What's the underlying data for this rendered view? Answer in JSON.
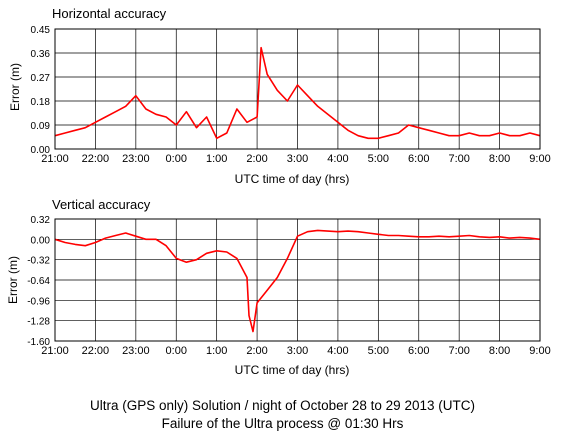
{
  "caption": {
    "line1": "Ultra (GPS only) Solution / night of October 28 to 29  2013 (UTC)",
    "line2": "Failure of the Ultra process @ 01:30 Hrs"
  },
  "colors": {
    "series": "#ff0000",
    "grid": "#000000",
    "background": "#ffffff"
  },
  "chart_data": [
    {
      "type": "line",
      "title": "Horizontal accuracy",
      "xlabel": "UTC time of day (hrs)",
      "ylabel": "Error (m)",
      "xlim": [
        0,
        12
      ],
      "ylim": [
        0,
        0.45
      ],
      "x_tick_labels": [
        "21:00",
        "22:00",
        "23:00",
        "0:00",
        "1:00",
        "2:00",
        "3:00",
        "4:00",
        "5:00",
        "6:00",
        "7:00",
        "8:00",
        "9:00"
      ],
      "y_ticks": [
        0,
        0.09,
        0.18,
        0.27,
        0.36,
        0.45
      ],
      "y_tick_labels": [
        "0.00",
        "0.09",
        "0.18",
        "0.27",
        "0.36",
        "0.45"
      ],
      "grid": true,
      "series": [
        {
          "x": [
            0,
            0.25,
            0.5,
            0.75,
            1,
            1.25,
            1.5,
            1.75,
            2,
            2.25,
            2.5,
            2.75,
            3,
            3.25,
            3.5,
            3.75,
            4,
            4.25,
            4.5,
            4.75,
            5,
            5.1,
            5.25,
            5.5,
            5.75,
            6,
            6.25,
            6.5,
            6.75,
            7,
            7.25,
            7.5,
            7.75,
            8,
            8.25,
            8.5,
            8.75,
            9,
            9.25,
            9.5,
            9.75,
            10,
            10.25,
            10.5,
            10.75,
            11,
            11.25,
            11.5,
            11.75,
            12
          ],
          "y": [
            0.05,
            0.06,
            0.07,
            0.08,
            0.1,
            0.12,
            0.14,
            0.16,
            0.2,
            0.15,
            0.13,
            0.12,
            0.09,
            0.14,
            0.08,
            0.12,
            0.04,
            0.06,
            0.15,
            0.1,
            0.12,
            0.38,
            0.28,
            0.22,
            0.18,
            0.24,
            0.2,
            0.16,
            0.13,
            0.1,
            0.07,
            0.05,
            0.04,
            0.04,
            0.05,
            0.06,
            0.09,
            0.08,
            0.07,
            0.06,
            0.05,
            0.05,
            0.06,
            0.05,
            0.05,
            0.06,
            0.05,
            0.05,
            0.06,
            0.05
          ]
        }
      ]
    },
    {
      "type": "line",
      "title": "Vertical accuracy",
      "xlabel": "UTC time of day (hrs)",
      "ylabel": "Error (m)",
      "xlim": [
        0,
        12
      ],
      "ylim": [
        -1.6,
        0.32
      ],
      "x_tick_labels": [
        "21:00",
        "22:00",
        "23:00",
        "0:00",
        "1:00",
        "2:00",
        "3:00",
        "4:00",
        "5:00",
        "6:00",
        "7:00",
        "8:00",
        "9:00"
      ],
      "y_ticks": [
        -1.6,
        -1.28,
        -0.96,
        -0.64,
        -0.32,
        0,
        0.32
      ],
      "y_tick_labels": [
        "-1.60",
        "-1.28",
        "-0.96",
        "-0.64",
        "-0.32",
        "0.00",
        "0.32"
      ],
      "grid": true,
      "series": [
        {
          "x": [
            0,
            0.25,
            0.5,
            0.75,
            1,
            1.25,
            1.5,
            1.75,
            2,
            2.25,
            2.5,
            2.75,
            3,
            3.25,
            3.5,
            3.75,
            4,
            4.25,
            4.5,
            4.75,
            4.8,
            4.9,
            5,
            5.25,
            5.5,
            5.75,
            6,
            6.25,
            6.5,
            6.75,
            7,
            7.25,
            7.5,
            7.75,
            8,
            8.25,
            8.5,
            8.75,
            9,
            9.25,
            9.5,
            9.75,
            10,
            10.25,
            10.5,
            10.75,
            11,
            11.25,
            11.5,
            11.75,
            12
          ],
          "y": [
            0.0,
            -0.05,
            -0.08,
            -0.1,
            -0.05,
            0.02,
            0.06,
            0.1,
            0.05,
            0.0,
            0.0,
            -0.1,
            -0.3,
            -0.36,
            -0.32,
            -0.22,
            -0.18,
            -0.2,
            -0.3,
            -0.6,
            -1.2,
            -1.45,
            -1.0,
            -0.8,
            -0.6,
            -0.3,
            0.05,
            0.12,
            0.14,
            0.13,
            0.12,
            0.13,
            0.12,
            0.1,
            0.08,
            0.06,
            0.06,
            0.05,
            0.04,
            0.04,
            0.05,
            0.04,
            0.05,
            0.06,
            0.04,
            0.03,
            0.04,
            0.02,
            0.03,
            0.02,
            0.0
          ]
        }
      ]
    }
  ]
}
